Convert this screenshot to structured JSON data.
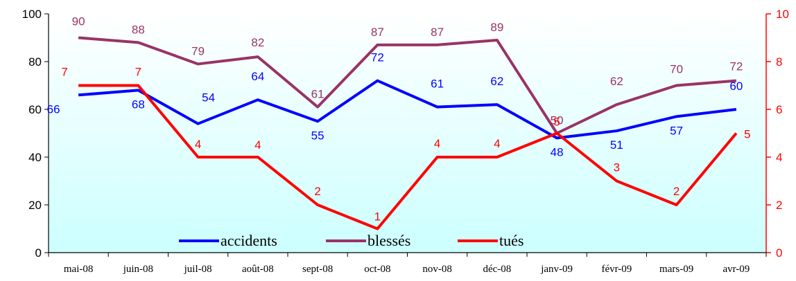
{
  "chart_data": {
    "type": "line",
    "categories": [
      "mai-08",
      "juin-08",
      "juil-08",
      "août-08",
      "sept-08",
      "oct-08",
      "nov-08",
      "déc-08",
      "janv-09",
      "févr-09",
      "mars-09",
      "avr-09"
    ],
    "y_left": {
      "range": [
        0,
        100
      ],
      "ticks": [
        "0",
        "20",
        "40",
        "60",
        "80",
        "100"
      ]
    },
    "y_right": {
      "range": [
        0,
        10
      ],
      "ticks": [
        "0",
        "2",
        "4",
        "6",
        "8",
        "10"
      ]
    },
    "series": [
      {
        "name": "accidents",
        "axis": "left",
        "color": "#0000ff",
        "values": [
          66,
          68,
          54,
          64,
          55,
          72,
          61,
          62,
          48,
          51,
          57,
          60
        ],
        "labels": [
          "66",
          "68",
          "54",
          "64",
          "55",
          "72",
          "61",
          "62",
          "48",
          "51",
          "57",
          "60"
        ]
      },
      {
        "name": "blessés",
        "axis": "left",
        "color": "#993366",
        "values": [
          90,
          88,
          79,
          82,
          61,
          87,
          87,
          89,
          50,
          62,
          70,
          72
        ],
        "labels": [
          "90",
          "88",
          "79",
          "82",
          "61",
          "87",
          "87",
          "89",
          "50",
          "62",
          "70",
          "72"
        ]
      },
      {
        "name": "tués",
        "axis": "right",
        "color": "#ff0000",
        "values": [
          7,
          7,
          4,
          4,
          2,
          1,
          4,
          4,
          5,
          3,
          2,
          5
        ],
        "labels": [
          "7",
          "7",
          "4",
          "4",
          "2",
          "1",
          "4",
          "4",
          "5",
          "3",
          "2",
          "5"
        ]
      }
    ],
    "background": {
      "top": "#ffffff",
      "bottom": "#ccffff"
    },
    "legend": "bottom-inside"
  }
}
